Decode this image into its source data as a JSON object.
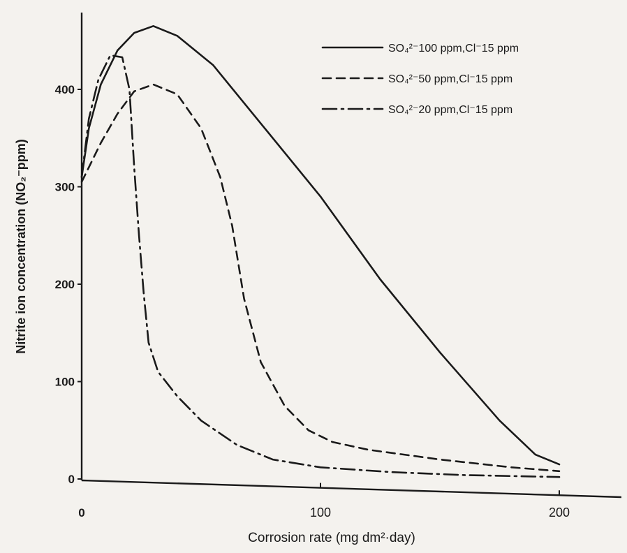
{
  "chart_data": {
    "type": "line",
    "xlabel": "Corrosion rate (mg dm²·day)",
    "ylabel": "Nitrite ion concentration (NO₂⁻ppm)",
    "xlim": [
      0,
      220
    ],
    "ylim": [
      0,
      480
    ],
    "x_ticks": [
      "0",
      "100",
      "200"
    ],
    "y_ticks": [
      "0",
      "100",
      "200",
      "300",
      "400"
    ],
    "legend_position": "top-right",
    "series": [
      {
        "name": "SO₄²⁻100 ppm,Cl⁻15 ppm",
        "style": "solid",
        "x": [
          0,
          3,
          8,
          15,
          22,
          30,
          40,
          55,
          75,
          100,
          125,
          150,
          175,
          190,
          200
        ],
        "y": [
          310,
          360,
          405,
          440,
          458,
          465,
          455,
          425,
          365,
          290,
          205,
          130,
          60,
          25,
          15
        ]
      },
      {
        "name": "SO₄²⁻50 ppm,Cl⁻15 ppm",
        "style": "dashed",
        "x": [
          0,
          8,
          15,
          22,
          30,
          40,
          50,
          58,
          63,
          68,
          75,
          85,
          95,
          105,
          120,
          150,
          180,
          200
        ],
        "y": [
          305,
          345,
          375,
          398,
          405,
          395,
          360,
          310,
          260,
          185,
          120,
          75,
          50,
          38,
          30,
          20,
          12,
          8
        ]
      },
      {
        "name": "SO₄²⁻20 ppm,Cl⁻15 ppm",
        "style": "dash-dot",
        "x": [
          0,
          3,
          7,
          12,
          17,
          20,
          22,
          24,
          26,
          28,
          32,
          40,
          50,
          65,
          80,
          100,
          130,
          160,
          200
        ],
        "y": [
          310,
          370,
          410,
          435,
          433,
          400,
          320,
          250,
          190,
          140,
          110,
          85,
          60,
          35,
          20,
          12,
          7,
          4,
          2
        ]
      }
    ]
  }
}
